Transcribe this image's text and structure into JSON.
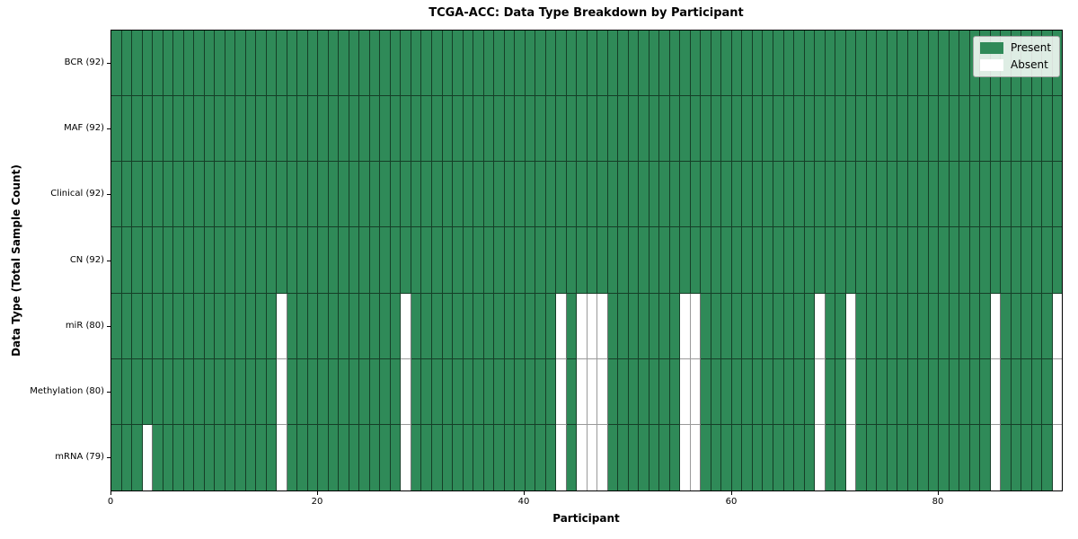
{
  "chart_data": {
    "type": "heatmap",
    "title": "TCGA-ACC: Data Type Breakdown by Participant",
    "xlabel": "Participant",
    "ylabel": "Data Type (Total Sample Count)",
    "n_participants": 92,
    "x_axis_range": [
      0,
      92
    ],
    "x_ticks": [
      0,
      20,
      40,
      60,
      80
    ],
    "grid": "cell-borders",
    "legend_position": "upper-right",
    "legend": [
      {
        "label": "Present",
        "color": "#2f8a58"
      },
      {
        "label": "Absent",
        "color": "#ffffff"
      }
    ],
    "colors": {
      "present_fill": "#2f8a58",
      "absent_fill": "#ffffff",
      "present_edge": "rgba(0,0,0,0.55)",
      "absent_edge": "#9a9a9a",
      "spine": "#000000"
    },
    "rows": [
      {
        "label": "BCR (92)",
        "name": "BCR",
        "present_count": 92,
        "absent_participants": []
      },
      {
        "label": "MAF (92)",
        "name": "MAF",
        "present_count": 92,
        "absent_participants": []
      },
      {
        "label": "Clinical (92)",
        "name": "Clinical",
        "present_count": 92,
        "absent_participants": []
      },
      {
        "label": "CN (92)",
        "name": "CN",
        "present_count": 92,
        "absent_participants": []
      },
      {
        "label": "miR (80)",
        "name": "miR",
        "present_count": 80,
        "absent_participants": [
          16,
          28,
          43,
          45,
          46,
          47,
          55,
          56,
          68,
          71,
          85,
          91
        ]
      },
      {
        "label": "Methylation (80)",
        "name": "Methylation",
        "present_count": 80,
        "absent_participants": [
          16,
          28,
          43,
          45,
          46,
          47,
          55,
          56,
          68,
          71,
          85,
          91
        ]
      },
      {
        "label": "mRNA (79)",
        "name": "mRNA",
        "present_count": 79,
        "absent_participants": [
          3,
          16,
          28,
          43,
          45,
          46,
          47,
          55,
          56,
          68,
          71,
          85,
          91
        ]
      }
    ]
  }
}
